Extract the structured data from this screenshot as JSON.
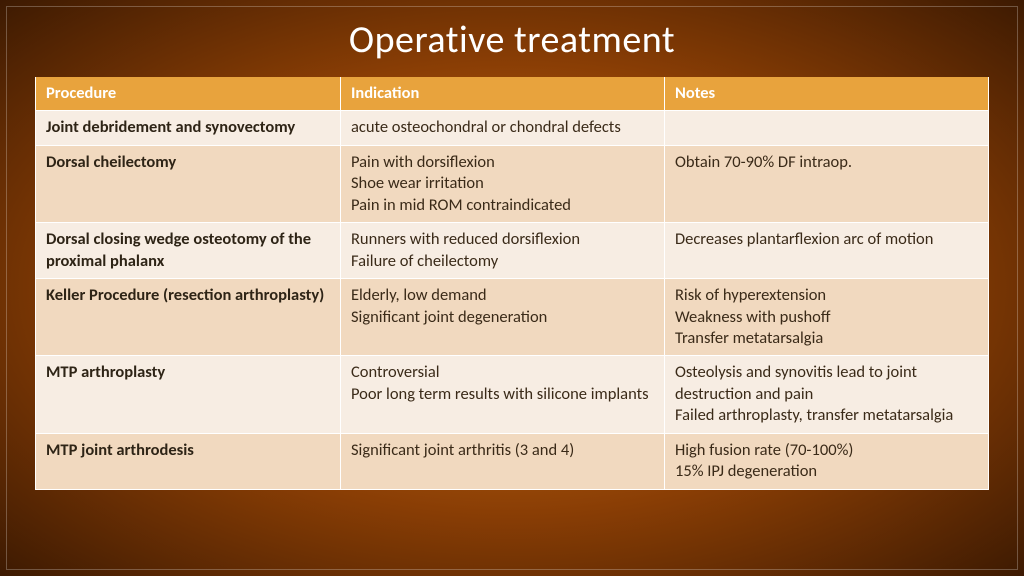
{
  "title": "Operative treatment",
  "table": {
    "columns": [
      "Procedure",
      "Indication",
      "Notes"
    ],
    "rows": [
      {
        "procedure": "Joint debridement and synovectomy",
        "indication": "acute osteochondral or chondral defects",
        "notes": ""
      },
      {
        "procedure": "Dorsal cheilectomy",
        "indication": "Pain with dorsiflexion\nShoe wear irritation\nPain in mid ROM contraindicated",
        "notes": "Obtain 70-90% DF intraop."
      },
      {
        "procedure": "Dorsal closing wedge osteotomy of the proximal phalanx",
        "indication": "Runners with reduced dorsiflexion\nFailure of cheilectomy",
        "notes": "Decreases plantarflexion arc of motion"
      },
      {
        "procedure": "Keller Procedure (resection arthroplasty)",
        "indication": "Elderly, low demand\nSignificant joint degeneration",
        "notes": "Risk of hyperextension\nWeakness with pushoff\nTransfer metatarsalgia"
      },
      {
        "procedure": "MTP arthroplasty",
        "indication": "Controversial\nPoor long term results with silicone implants",
        "notes": "Osteolysis and synovitis lead to joint destruction and pain\nFailed arthroplasty, transfer metatarsalgia"
      },
      {
        "procedure": "MTP joint arthrodesis",
        "indication": "Significant joint arthritis (3 and 4)",
        "notes": "High fusion rate (70-100%)\n15% IPJ degeneration"
      }
    ]
  },
  "style": {
    "header_bg": "#e8a33d",
    "header_fg": "#ffffff",
    "row_odd_bg": "#f7ede3",
    "row_even_bg": "#f1d9bf",
    "cell_fg": "#3a2a18",
    "title_fg": "#ffffff",
    "title_fontsize": 38,
    "body_fontsize": 16.5,
    "font_family": "Calibri",
    "slide_bg_gradient": [
      "#d88020",
      "#b56010",
      "#8a3e05",
      "#3d1a02"
    ],
    "col_widths_pct": [
      32,
      34,
      34
    ]
  }
}
